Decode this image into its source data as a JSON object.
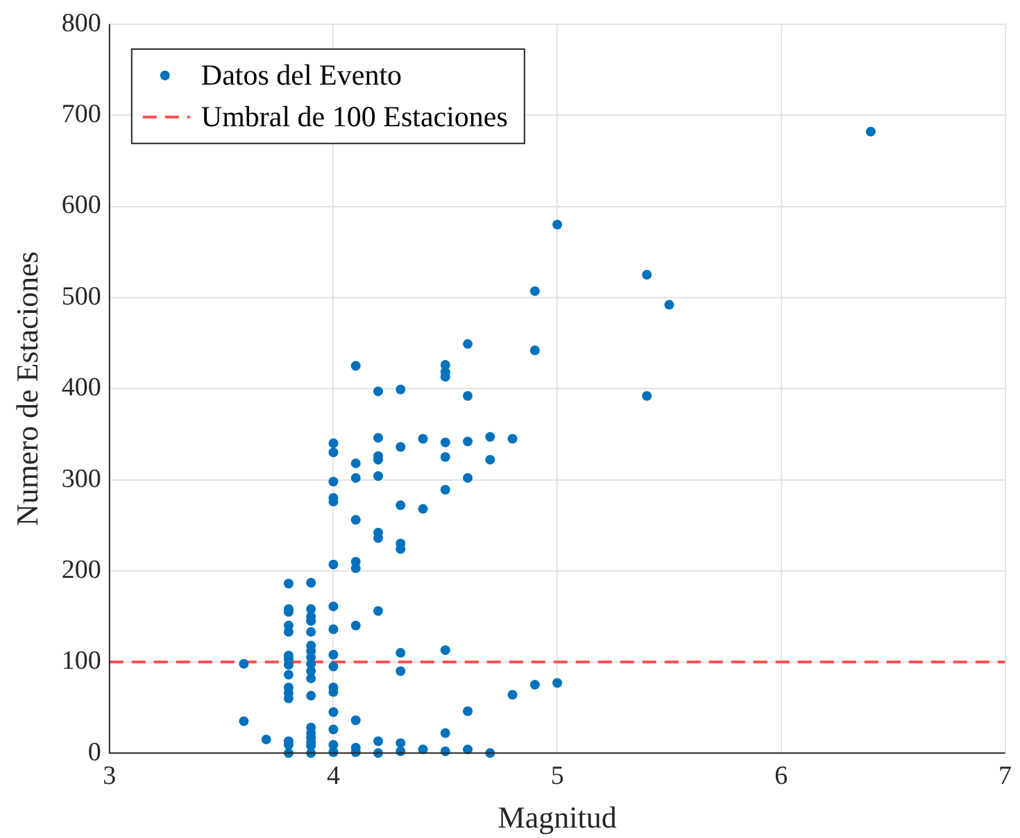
{
  "chart_data": {
    "type": "scatter",
    "xlabel": "Magnitud",
    "ylabel": "Numero de Estaciones",
    "xlim": [
      3,
      7
    ],
    "xticks": [
      3,
      4,
      5,
      6,
      7
    ],
    "ylim": [
      0,
      800
    ],
    "yticks": [
      0,
      100,
      200,
      300,
      400,
      500,
      600,
      700,
      800
    ],
    "grid": true,
    "legend": "top left",
    "marker": "circle",
    "series": [
      {
        "name": "Datos del Evento",
        "color": "#0072bd",
        "x": [
          3.6,
          3.6,
          3.7,
          3.8,
          3.8,
          3.8,
          3.8,
          3.8,
          3.8,
          3.8,
          3.8,
          3.8,
          3.8,
          3.8,
          3.8,
          3.8,
          3.8,
          3.8,
          3.9,
          3.9,
          3.9,
          3.9,
          3.9,
          3.9,
          3.9,
          3.9,
          3.9,
          3.9,
          3.9,
          3.9,
          3.9,
          3.9,
          3.9,
          3.9,
          3.9,
          3.9,
          4.0,
          4.0,
          4.0,
          4.0,
          4.0,
          4.0,
          4.0,
          4.0,
          4.0,
          4.0,
          4.0,
          4.0,
          4.0,
          4.0,
          4.0,
          4.0,
          4.1,
          4.1,
          4.1,
          4.1,
          4.1,
          4.1,
          4.1,
          4.1,
          4.1,
          4.1,
          4.2,
          4.2,
          4.2,
          4.2,
          4.2,
          4.2,
          4.2,
          4.2,
          4.2,
          4.2,
          4.3,
          4.3,
          4.3,
          4.3,
          4.3,
          4.3,
          4.3,
          4.3,
          4.3,
          4.4,
          4.4,
          4.4,
          4.5,
          4.5,
          4.5,
          4.5,
          4.5,
          4.5,
          4.5,
          4.5,
          4.5,
          4.6,
          4.6,
          4.6,
          4.6,
          4.6,
          4.6,
          4.7,
          4.7,
          4.7,
          4.8,
          4.8,
          4.9,
          4.9,
          4.9,
          5.0,
          5.0,
          5.4,
          5.4,
          5.5,
          6.4
        ],
        "values": [
          98,
          35,
          15,
          186,
          158,
          155,
          140,
          133,
          107,
          103,
          97,
          86,
          72,
          66,
          60,
          13,
          9,
          0,
          187,
          158,
          150,
          145,
          133,
          118,
          112,
          105,
          98,
          90,
          82,
          63,
          28,
          22,
          17,
          12,
          8,
          0,
          340,
          330,
          298,
          280,
          276,
          207,
          161,
          136,
          108,
          95,
          72,
          67,
          45,
          26,
          9,
          1,
          425,
          318,
          302,
          256,
          210,
          203,
          140,
          36,
          6,
          1,
          397,
          346,
          326,
          322,
          304,
          242,
          236,
          156,
          13,
          0,
          399,
          336,
          272,
          230,
          224,
          110,
          90,
          11,
          2,
          345,
          268,
          4,
          426,
          418,
          413,
          341,
          325,
          289,
          113,
          22,
          2,
          449,
          392,
          342,
          302,
          46,
          4,
          347,
          322,
          0,
          345,
          64,
          507,
          442,
          75,
          580,
          77,
          525,
          392,
          492,
          682
        ]
      }
    ],
    "ref_lines": [
      {
        "axis": "y",
        "value": 100,
        "label": "Umbral de 100 Estaciones",
        "color": "#ff4d4d",
        "line_style": "dashed"
      }
    ]
  }
}
